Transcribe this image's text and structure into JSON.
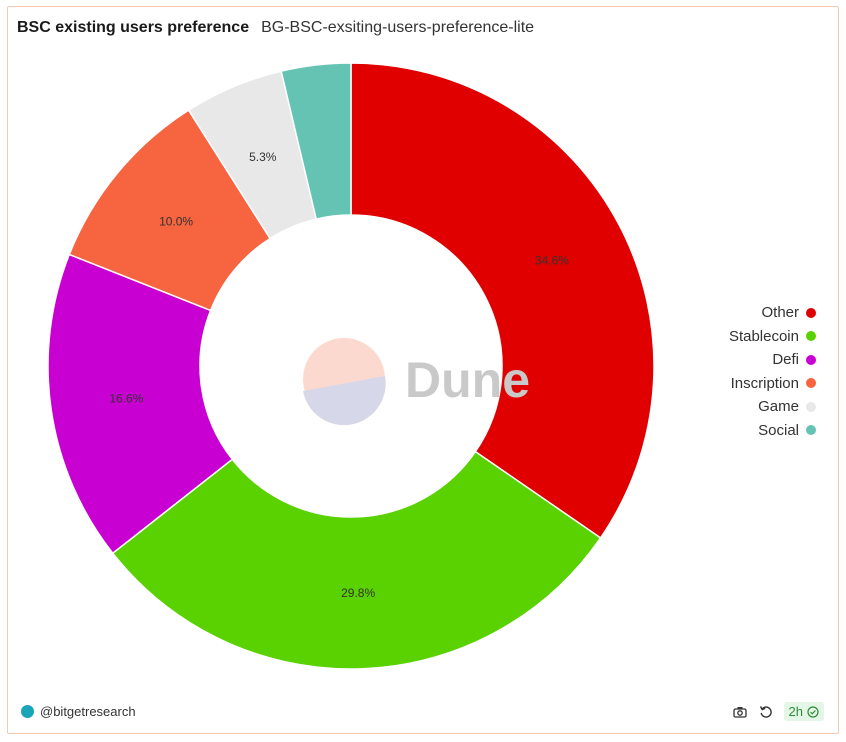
{
  "header": {
    "title": "BSC existing users preference",
    "subtitle": "BG-BSC-exsiting-users-preference-lite"
  },
  "watermark": {
    "text": "Dune"
  },
  "chart_data": {
    "type": "pie",
    "variant": "donut",
    "slices": [
      {
        "name": "Other",
        "value": 34.6,
        "label": "34.6%",
        "color": "#e00000"
      },
      {
        "name": "Stablecoin",
        "value": 29.8,
        "label": "29.8%",
        "color": "#5ad100"
      },
      {
        "name": "Defi",
        "value": 16.6,
        "label": "16.6%",
        "color": "#c800d2"
      },
      {
        "name": "Inscription",
        "value": 10.0,
        "label": "10.0%",
        "color": "#f66440"
      },
      {
        "name": "Game",
        "value": 5.3,
        "label": "5.3%",
        "color": "#e8e8e8"
      },
      {
        "name": "Social",
        "value": 3.7,
        "label": "",
        "color": "#64c3b2"
      }
    ],
    "legend_position": "right"
  },
  "footer": {
    "author": "@bitgetresearch",
    "refresh_badge": "2h"
  }
}
